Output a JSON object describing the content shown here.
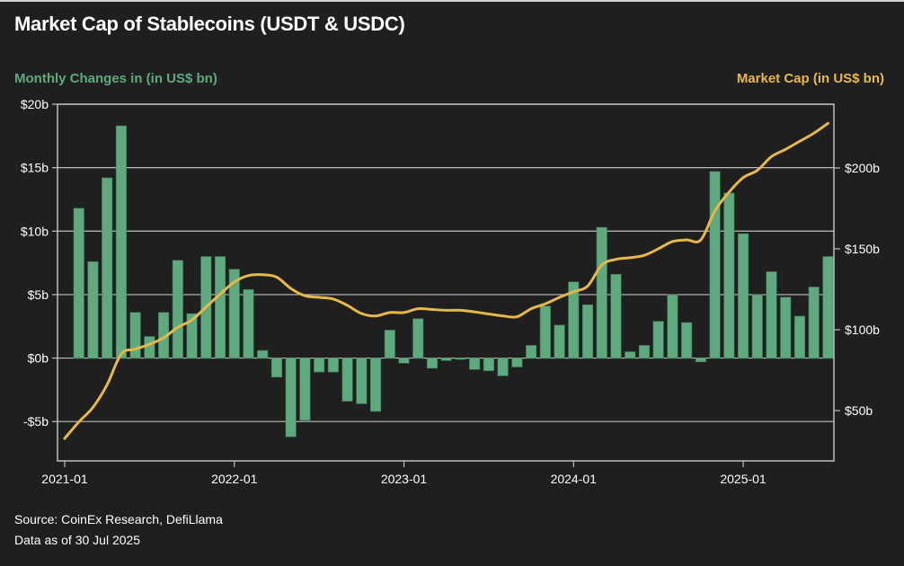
{
  "title": "Market Cap of Stablecoins (USDT & USDC)",
  "left_subtitle": "Monthly Changes in (in US$ bn)",
  "right_subtitle": "Market Cap (in US$ bn)",
  "footer": {
    "source": "Source: CoinEx Research, DefiLlama",
    "date": "Data as of 30 Jul 2025"
  },
  "colors": {
    "bars": "#5fa97f",
    "line": "#e6b84a",
    "background": "#1f1f1f",
    "grid": "#bdbdbd"
  },
  "chart_data": {
    "type": "bar+line",
    "title": "Market Cap of Stablecoins (USDT & USDC)",
    "x_start": "2021-01",
    "x_ticks": [
      "2021-01",
      "2022-01",
      "2023-01",
      "2024-01",
      "2025-01"
    ],
    "x_range_months": [
      0,
      54
    ],
    "left_axis": {
      "label": "Monthly Changes in (in US$ bn)",
      "ylim": [
        -8.1,
        20
      ],
      "ticks": [
        20,
        15,
        10,
        5,
        0,
        -5
      ],
      "tick_labels": [
        "$20b",
        "$15b",
        "$10b",
        "$5b",
        "$0b",
        "-$5b"
      ]
    },
    "right_axis": {
      "label": "Market Cap (in US$ bn)",
      "ylim": [
        18.9,
        239.4
      ],
      "ticks": [
        200,
        150,
        100,
        50
      ],
      "tick_labels": [
        "$200b",
        "$150b",
        "$100b",
        "$50b"
      ]
    },
    "grid": true,
    "series": [
      {
        "name": "Monthly Changes",
        "type": "bar",
        "axis": "left",
        "start_month_index": 1,
        "values": [
          11.8,
          7.6,
          14.2,
          18.3,
          3.6,
          1.7,
          3.6,
          7.7,
          3.5,
          8.0,
          8.0,
          7.0,
          5.4,
          0.6,
          -1.5,
          -6.2,
          -4.9,
          -1.1,
          -1.1,
          -3.4,
          -3.6,
          -4.2,
          2.2,
          -0.4,
          3.1,
          -0.8,
          -0.2,
          -0.1,
          -0.9,
          -1.0,
          -1.4,
          -0.7,
          1.0,
          4.1,
          2.6,
          6.0,
          4.2,
          10.3,
          6.6,
          0.5,
          1.0,
          2.9,
          5.0,
          2.8,
          -0.3,
          14.7,
          13.0,
          9.8,
          5.0,
          6.8,
          4.8,
          3.3,
          5.6,
          8.0
        ]
      },
      {
        "name": "Market Cap",
        "type": "line",
        "axis": "right",
        "start_month_index": 0,
        "values": [
          32.8,
          43,
          52,
          66,
          85,
          88,
          91,
          95,
          101.5,
          106,
          114,
          122,
          129.5,
          133.5,
          134,
          132.5,
          125.5,
          121,
          120,
          119,
          115,
          110,
          108.5,
          110.6,
          110.6,
          113,
          112.5,
          112,
          112,
          111,
          109.7,
          108.5,
          108,
          113,
          116,
          120,
          123.5,
          127,
          140,
          143.5,
          144.5,
          146,
          150,
          154.5,
          155.5,
          155.5,
          173.5,
          185,
          194,
          198.5,
          207,
          211.5,
          216.5,
          221.5,
          227.6
        ]
      }
    ]
  }
}
